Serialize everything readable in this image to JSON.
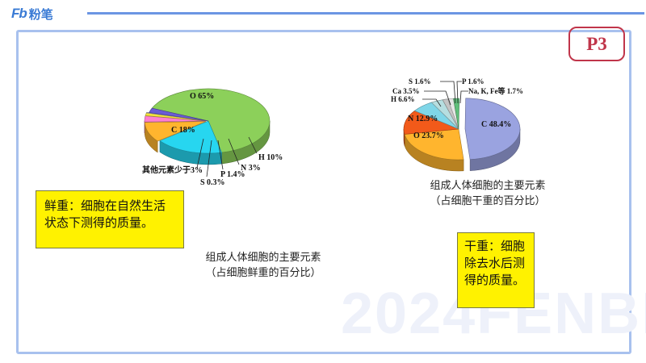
{
  "header": {
    "logo_mark": "Fb",
    "logo_text": "粉笔"
  },
  "page_badge": "P3",
  "watermark": "2024FENBI",
  "charts": {
    "fresh": {
      "slices": {
        "o": "O 65%",
        "c": "C 18%",
        "h": "H 10%",
        "n": "N 3%",
        "p": "P 1.4%",
        "s": "S 0.3%",
        "other": "其他元素少于3%"
      },
      "caption_line1": "组成人体细胞的主要元素",
      "caption_line2": "（占细胞鲜重的百分比）"
    },
    "dry": {
      "slices": {
        "c": "C 48.4%",
        "o": "O 23.7%",
        "n": "N 12.9%",
        "h": "H 6.6%",
        "ca": "Ca 3.5%",
        "s": "S 1.6%",
        "p": "P 1.6%",
        "other": "Na, K, Fe等 1.7%"
      },
      "caption_line1": "组成人体细胞的主要元素",
      "caption_line2": "（占细胞干重的百分比）"
    }
  },
  "notes": {
    "fresh_weight": "鲜重：细胞在自然生活状态下测得的质量。",
    "dry_weight": "干重：细胞除去水后测得的质量。"
  },
  "chart_data": [
    {
      "type": "pie",
      "categories": [
        "O",
        "C",
        "H",
        "N",
        "P",
        "S",
        "其他元素少于3%"
      ],
      "values": [
        65,
        18,
        10,
        3,
        1.4,
        0.3,
        2.3
      ],
      "colors": [
        "#8cd05a",
        "#27d6f0",
        "#ffb52e",
        "#ff7fd0",
        "#f4e23a",
        "#b7c0e0",
        "#6b5bd6"
      ]
    },
    {
      "type": "pie",
      "categories": [
        "C",
        "O",
        "N",
        "H",
        "Ca",
        "S",
        "P",
        "Na, K, Fe等"
      ],
      "values": [
        48.4,
        23.7,
        12.9,
        6.6,
        3.5,
        1.6,
        1.6,
        1.7
      ],
      "colors": [
        "#9aa3e0",
        "#ffb52e",
        "#f25a1a",
        "#7fd6e8",
        "#b6dee0",
        "#c4c4c4",
        "#e6e6e6",
        "#5fbf7a"
      ]
    }
  ]
}
